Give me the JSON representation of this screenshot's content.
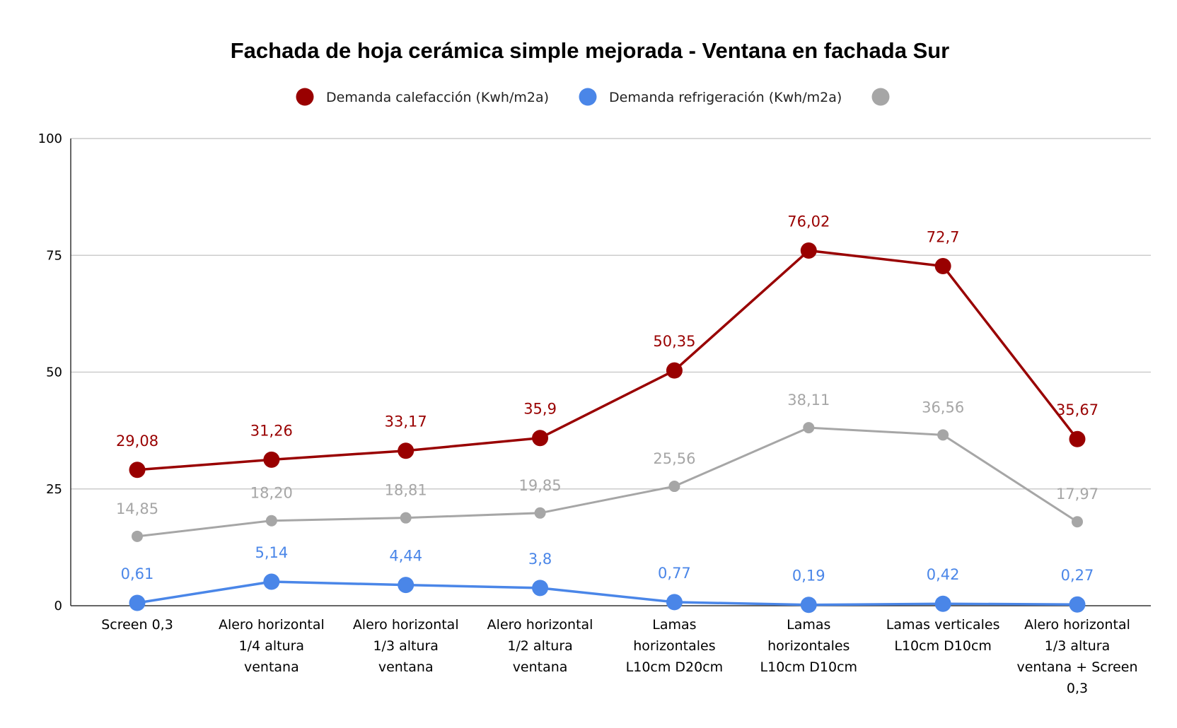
{
  "chart_data": {
    "type": "line",
    "title": "Fachada de hoja cerámica simple mejorada - Ventana en fachada Sur",
    "xlabel": "",
    "ylabel": "",
    "ylim": [
      0,
      100
    ],
    "yticks": [
      "0",
      "25",
      "50",
      "75",
      "100"
    ],
    "grid": true,
    "legend_position": "top",
    "categories": [
      [
        "Screen 0,3"
      ],
      [
        "Alero horizontal",
        "1/4 altura",
        "ventana"
      ],
      [
        "Alero horizontal",
        "1/3 altura",
        "ventana"
      ],
      [
        "Alero horizontal",
        "1/2 altura",
        "ventana"
      ],
      [
        "Lamas",
        "horizontales",
        "L10cm D20cm"
      ],
      [
        "Lamas",
        "horizontales",
        "L10cm D10cm"
      ],
      [
        "Lamas verticales",
        "L10cm D10cm"
      ],
      [
        "Alero horizontal",
        "1/3 altura",
        "ventana + Screen",
        "0,3"
      ]
    ],
    "series": [
      {
        "name": "Demanda calefacción (Kwh/m2a)",
        "color": "#990000",
        "values": [
          29.08,
          31.26,
          33.17,
          35.9,
          50.35,
          76.02,
          72.7,
          35.67
        ],
        "labels": [
          "29,08",
          "31,26",
          "33,17",
          "35,9",
          "50,35",
          "76,02",
          "72,7",
          "35,67"
        ]
      },
      {
        "name": "Demanda refrigeración (Kwh/m2a)",
        "color": "#4a86e8",
        "values": [
          0.61,
          5.14,
          4.44,
          3.8,
          0.77,
          0.19,
          0.42,
          0.27
        ],
        "labels": [
          "0,61",
          "5,14",
          "4,44",
          "3,8",
          "0,77",
          "0,19",
          "0,42",
          "0,27"
        ]
      },
      {
        "name": "",
        "color": "#a6a6a6",
        "values": [
          14.85,
          18.2,
          18.81,
          19.85,
          25.56,
          38.11,
          36.56,
          17.97
        ],
        "labels": [
          "14,85",
          "18,20",
          "18,81",
          "19,85",
          "25,56",
          "38,11",
          "36,56",
          "17,97"
        ]
      }
    ]
  },
  "colors": {
    "grid": "#cccccc",
    "axis": "#333333",
    "background": "#ffffff"
  }
}
